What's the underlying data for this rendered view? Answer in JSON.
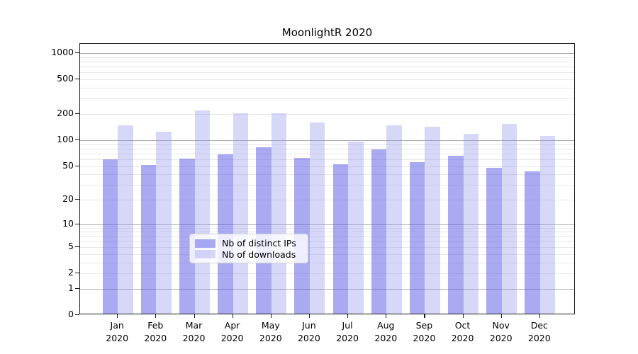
{
  "chart_data": {
    "type": "bar",
    "title": "MoonlightR 2020",
    "categories": [
      "Jan 2020",
      "Feb 2020",
      "Mar 2020",
      "Apr 2020",
      "May 2020",
      "Jun 2020",
      "Jul 2020",
      "Aug 2020",
      "Sep 2020",
      "Oct 2020",
      "Nov 2020",
      "Dec 2020"
    ],
    "series": [
      {
        "name": "Nb of distinct IPs",
        "values": [
          60,
          51,
          61,
          68,
          82,
          62,
          52,
          78,
          55,
          66,
          48,
          43
        ],
        "fill": "rgba(95, 95, 230, 0.53)"
      },
      {
        "name": "Nb of downloads",
        "values": [
          148,
          125,
          222,
          203,
          205,
          160,
          97,
          147,
          143,
          118,
          154,
          112
        ],
        "fill": "rgba(143, 143, 235, 0.36)"
      }
    ],
    "y_ticks": [
      0,
      1,
      2,
      5,
      10,
      20,
      50,
      100,
      200,
      500,
      1000
    ],
    "y_scale": "log1p",
    "ylim": [
      0,
      1400
    ],
    "xlabel": "",
    "ylabel": "",
    "grid": true,
    "legend_position": "lower-center-inside",
    "colors": {
      "grid_major": "#ababab",
      "grid_minor": "#e8e8e8",
      "spine": "#1a1a1a",
      "background": "#ffffff"
    }
  }
}
